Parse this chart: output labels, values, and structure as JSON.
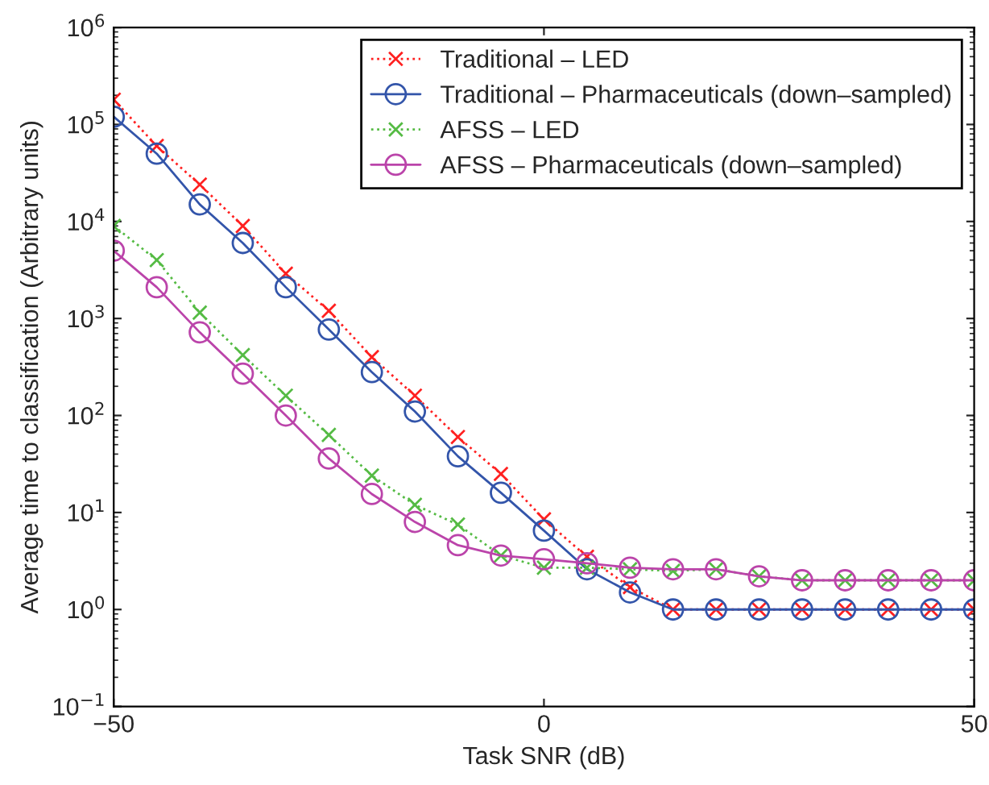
{
  "chart_data": {
    "type": "line",
    "xlabel": "Task SNR (dB)",
    "ylabel": "Average time to classification (Arbitrary units)",
    "x": [
      -50,
      -45,
      -40,
      -35,
      -30,
      -25,
      -20,
      -15,
      -10,
      -5,
      0,
      5,
      10,
      15,
      20,
      25,
      30,
      35,
      40,
      45,
      50
    ],
    "series": [
      {
        "name": "Traditional – LED",
        "color": "#ff2020",
        "marker": "cross",
        "line_style": "dotted",
        "values": [
          180000,
          60000,
          24000,
          9000,
          2900,
          1200,
          400,
          160,
          60,
          25,
          8.5,
          3.5,
          1.7,
          1.0,
          1.0,
          1.0,
          1.0,
          1.0,
          1.0,
          1.0,
          1.0
        ]
      },
      {
        "name": "Traditional – Pharmaceuticals (down–sampled)",
        "color": "#3355aa",
        "marker": "circle",
        "line_style": "solid",
        "values": [
          120000,
          50000,
          15000,
          6000,
          2100,
          770,
          280,
          110,
          38,
          16,
          6.5,
          2.6,
          1.5,
          1.0,
          1.0,
          1.0,
          1.0,
          1.0,
          1.0,
          1.0,
          1.0
        ]
      },
      {
        "name": "AFSS – LED",
        "color": "#55bb44",
        "marker": "cross",
        "line_style": "dotted",
        "values": [
          9000,
          4000,
          1150,
          420,
          160,
          63,
          24,
          12,
          7.5,
          3.6,
          2.7,
          2.7,
          2.6,
          2.5,
          2.6,
          2.2,
          2.0,
          2.0,
          2.0,
          2.0,
          2.0
        ]
      },
      {
        "name": "AFSS – Pharmaceuticals (down–sampled)",
        "color": "#bb44aa",
        "marker": "circle",
        "line_style": "solid",
        "values": [
          5000,
          2100,
          720,
          270,
          100,
          36,
          15.5,
          8,
          4.6,
          3.6,
          3.3,
          3.0,
          2.7,
          2.6,
          2.6,
          2.2,
          2.0,
          2.0,
          2.0,
          2.0,
          2.0
        ]
      }
    ],
    "log": "y",
    "xlim": [
      -50,
      50
    ],
    "ylim": [
      0.1,
      1000000
    ],
    "xticks": [
      {
        "value": -50,
        "label": "−50"
      },
      0,
      50
    ],
    "yticks": [
      {
        "value": 0.1,
        "label": "10$^{−1}$"
      },
      {
        "value": 1,
        "label": "10$^{0}$"
      },
      {
        "value": 10,
        "label": "10$^{1}$"
      },
      {
        "value": 100,
        "label": "10$^{2}$"
      },
      {
        "value": 1000,
        "label": "10$^{3}$"
      },
      {
        "value": 10000,
        "label": "10$^{4}$"
      },
      {
        "value": 100000,
        "label": "10$^{5}$"
      },
      {
        "value": 1000000,
        "label": "10$^{6}$"
      }
    ],
    "grid": false,
    "legend": "top right"
  }
}
